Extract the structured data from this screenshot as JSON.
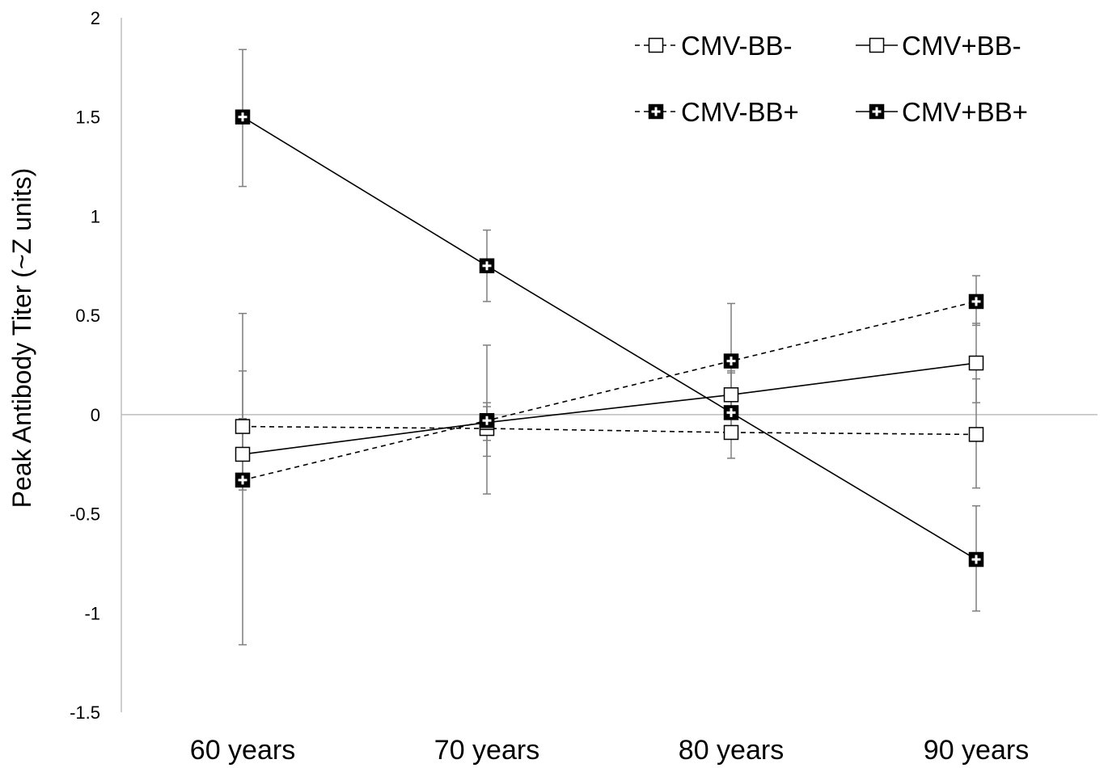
{
  "chart_data": {
    "type": "line",
    "ylabel": "Peak Antibody Titer (~Z units)",
    "xlabel": "",
    "categories": [
      "60 years",
      "70 years",
      "80 years",
      "90 years"
    ],
    "ylim": [
      -1.5,
      2
    ],
    "yticks": [
      "2",
      "1.5",
      "1",
      "0.5",
      "0",
      "-0.5",
      "-1",
      "-1.5"
    ],
    "ytick_values": [
      2,
      1.5,
      1,
      0.5,
      0,
      -0.5,
      -1,
      -1.5
    ],
    "grid": false,
    "legend_position": "top-right",
    "series": [
      {
        "name": "CMV-BB-",
        "line": "dashed",
        "marker": "open-square",
        "values": [
          -0.06,
          -0.07,
          -0.09,
          -0.1
        ],
        "error_low": [
          -0.36,
          -0.21,
          -0.22,
          -0.37
        ],
        "error_high": [
          0.22,
          0.06,
          0.21,
          0.18
        ]
      },
      {
        "name": "CMV+BB-",
        "line": "solid",
        "marker": "open-square",
        "values": [
          -0.2,
          -0.04,
          0.1,
          0.26
        ],
        "error_low": [
          -0.38,
          -0.13,
          -0.02,
          0.06
        ],
        "error_high": [
          -0.02,
          0.04,
          0.22,
          0.46
        ]
      },
      {
        "name": "CMV-BB+",
        "line": "dashed",
        "marker": "filled-cross-square",
        "values": [
          -0.33,
          -0.03,
          0.27,
          0.57
        ],
        "error_low": [
          -1.16,
          -0.4,
          -0.01,
          0.45
        ],
        "error_high": [
          0.51,
          0.35,
          0.56,
          0.7
        ]
      },
      {
        "name": "CMV+BB+",
        "line": "solid",
        "marker": "filled-cross-square",
        "values": [
          1.5,
          0.75,
          0.01,
          -0.73
        ],
        "error_low": [
          1.15,
          0.57,
          -0.11,
          -0.99
        ],
        "error_high": [
          1.84,
          0.93,
          0.13,
          -0.46
        ]
      }
    ]
  }
}
